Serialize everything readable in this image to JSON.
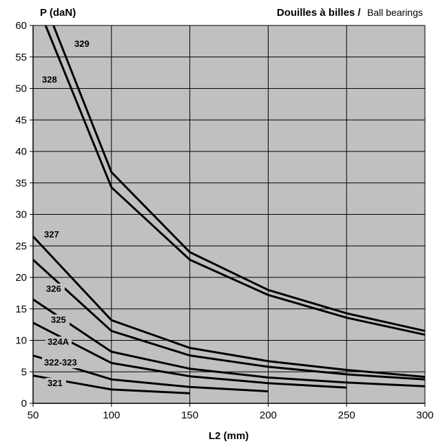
{
  "chart_data": {
    "type": "line",
    "title_bold": "Douilles à billes /",
    "title_normal": "Ball bearings",
    "ylabel": "P (daN)",
    "xlabel": "L2 (mm)",
    "xlim": [
      50,
      300
    ],
    "ylim": [
      0,
      60
    ],
    "x_ticks": [
      50,
      100,
      150,
      200,
      250,
      300
    ],
    "y_ticks": [
      0,
      5,
      10,
      15,
      20,
      25,
      30,
      35,
      40,
      45,
      50,
      55,
      60
    ],
    "grid": true,
    "background": "#c0c0c0",
    "line_color": "#000000",
    "series": [
      {
        "name": "329",
        "x": [
          63,
          100,
          150,
          200,
          250,
          300
        ],
        "y": [
          60,
          36.7,
          24,
          18,
          14.3,
          11.5
        ]
      },
      {
        "name": "328",
        "x": [
          58,
          100,
          150,
          200,
          250,
          300
        ],
        "y": [
          60,
          34.3,
          22.8,
          17.2,
          13.6,
          10.9
        ]
      },
      {
        "name": "327",
        "x": [
          50,
          100,
          150,
          200,
          250,
          300
        ],
        "y": [
          26.5,
          13.2,
          8.8,
          6.7,
          5.3,
          4.2
        ]
      },
      {
        "name": "326",
        "x": [
          50,
          100,
          150,
          200,
          250,
          300
        ],
        "y": [
          22.8,
          11.5,
          7.6,
          5.8,
          4.6,
          3.8
        ]
      },
      {
        "name": "325",
        "x": [
          50,
          100,
          150,
          200,
          250,
          300
        ],
        "y": [
          16.5,
          8.2,
          5.5,
          4.1,
          3.3,
          2.7
        ]
      },
      {
        "name": "324A",
        "x": [
          50,
          100,
          150,
          200,
          250
        ],
        "y": [
          12.8,
          6.4,
          4.3,
          3.2,
          2.5
        ]
      },
      {
        "name": "322-323",
        "x": [
          50,
          100,
          150,
          200
        ],
        "y": [
          7.6,
          3.8,
          2.6,
          1.9
        ]
      },
      {
        "name": "321",
        "x": [
          50,
          100,
          150
        ],
        "y": [
          4.4,
          2.2,
          1.6
        ]
      }
    ]
  }
}
